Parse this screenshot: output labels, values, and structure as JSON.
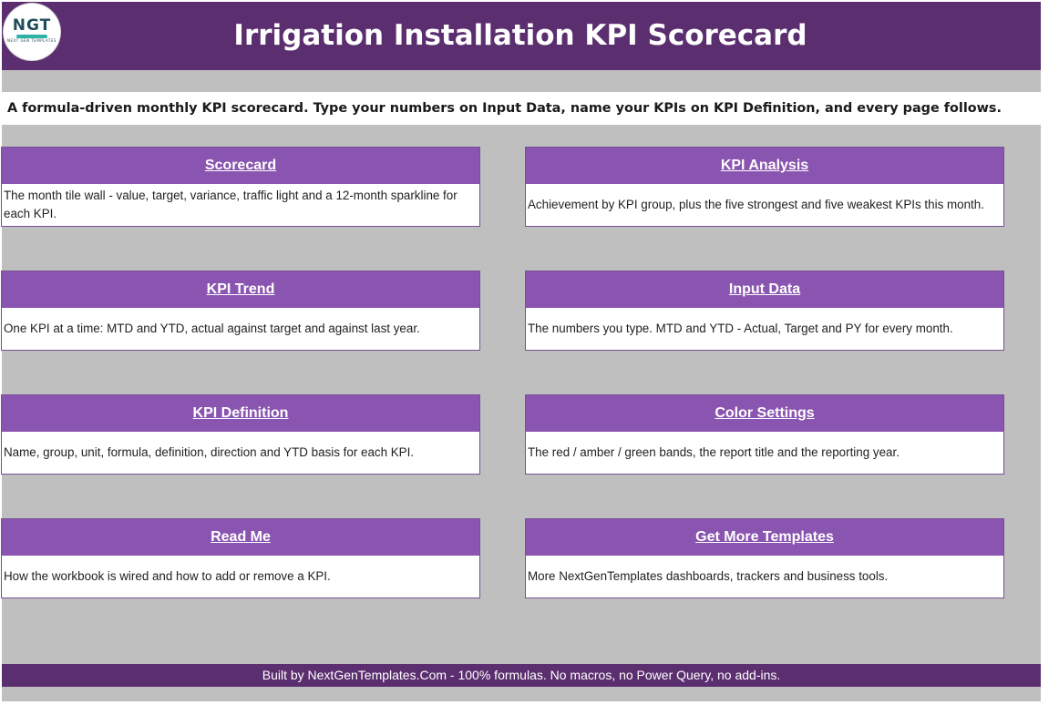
{
  "header": {
    "logo_text": "NGT",
    "logo_subtext": "NEXT GEN TEMPLATES",
    "title": "Irrigation Installation KPI Scorecard"
  },
  "subtitle": "A formula-driven monthly KPI scorecard. Type your numbers on Input Data, name your KPIs on KPI Definition, and every page follows.",
  "cards": [
    {
      "title": "Scorecard",
      "description": "The month tile wall - value, target, variance, traffic light and a 12-month sparkline for each KPI."
    },
    {
      "title": "KPI Analysis",
      "description": "Achievement by KPI group, plus the five strongest and five weakest KPIs this month."
    },
    {
      "title": "KPI Trend",
      "description": "One KPI at a time: MTD and YTD, actual against target and against last year."
    },
    {
      "title": "Input Data",
      "description": "The numbers you type. MTD and YTD - Actual, Target and PY for every month."
    },
    {
      "title": "KPI Definition",
      "description": "Name, group, unit, formula, definition, direction and YTD basis for each KPI."
    },
    {
      "title": "Color Settings",
      "description": "The red / amber / green bands, the report title and the reporting year."
    },
    {
      "title": "Read Me",
      "description": "How the workbook is wired and how to add or remove a KPI."
    },
    {
      "title": "Get More Templates",
      "description": "More NextGenTemplates dashboards, trackers and business tools."
    }
  ],
  "footer": "Built by NextGenTemplates.Com  -  100% formulas. No macros, no Power Query, no add-ins.",
  "colors": {
    "header_bg": "#5b2f6f",
    "card_header_bg": "#8a55b0",
    "sheet_bg": "#bfbfbf",
    "accent_teal": "#2bb3a3"
  }
}
